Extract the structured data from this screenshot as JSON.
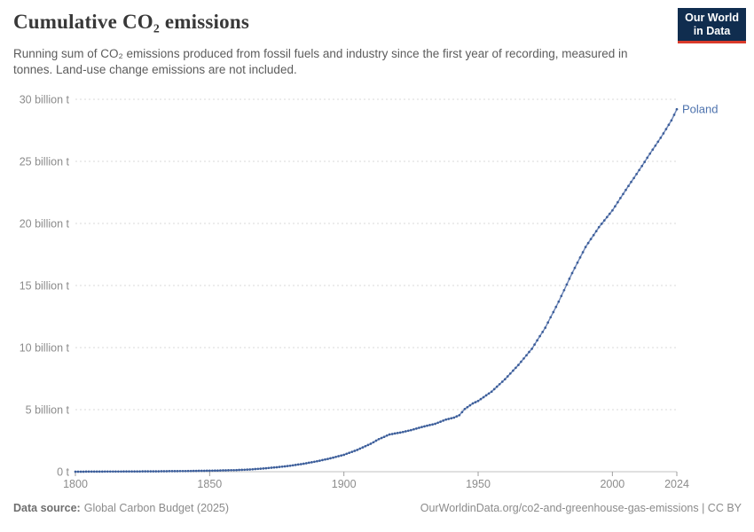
{
  "header": {
    "title": "Cumulative CO₂ emissions",
    "subtitle": "Running sum of CO₂ emissions produced from fossil fuels and industry since the first year of recording, measured in tonnes. Land-use change emissions are not included.",
    "logo": {
      "line1": "Our World",
      "line2": "in Data",
      "bg_color": "#102d4f",
      "accent_color": "#d93a2b"
    }
  },
  "chart_data": {
    "type": "line",
    "title": "Cumulative CO₂ emissions",
    "unit": "tonnes",
    "grid": true,
    "legend_position": "end-of-line label",
    "x": {
      "min": 1800,
      "max": 2024,
      "ticks": [
        1800,
        1850,
        1900,
        1950,
        2000,
        2024
      ]
    },
    "y": {
      "min": 0,
      "max": 30,
      "unit": "billion tonnes",
      "ticks": [
        {
          "value": 0,
          "label": "0 t"
        },
        {
          "value": 5,
          "label": "5 billion t"
        },
        {
          "value": 10,
          "label": "10 billion t"
        },
        {
          "value": 15,
          "label": "15 billion t"
        },
        {
          "value": 20,
          "label": "20 billion t"
        },
        {
          "value": 25,
          "label": "25 billion t"
        },
        {
          "value": 30,
          "label": "30 billion t"
        }
      ]
    },
    "series": [
      {
        "name": "Poland",
        "color": "#3c5e9a",
        "line_color": "#7088b8",
        "label_color": "#4d72ad",
        "anchors_year_billion_tonnes": [
          [
            1800,
            0.0
          ],
          [
            1810,
            0.01
          ],
          [
            1820,
            0.02
          ],
          [
            1830,
            0.03
          ],
          [
            1840,
            0.05
          ],
          [
            1850,
            0.08
          ],
          [
            1860,
            0.13
          ],
          [
            1865,
            0.18
          ],
          [
            1870,
            0.26
          ],
          [
            1875,
            0.36
          ],
          [
            1880,
            0.48
          ],
          [
            1885,
            0.64
          ],
          [
            1890,
            0.84
          ],
          [
            1895,
            1.08
          ],
          [
            1900,
            1.36
          ],
          [
            1905,
            1.76
          ],
          [
            1910,
            2.25
          ],
          [
            1913,
            2.62
          ],
          [
            1917,
            3.0
          ],
          [
            1921,
            3.15
          ],
          [
            1925,
            3.35
          ],
          [
            1929,
            3.6
          ],
          [
            1934,
            3.86
          ],
          [
            1938,
            4.2
          ],
          [
            1941,
            4.36
          ],
          [
            1943,
            4.55
          ],
          [
            1945,
            5.05
          ],
          [
            1948,
            5.5
          ],
          [
            1950,
            5.7
          ],
          [
            1955,
            6.45
          ],
          [
            1960,
            7.45
          ],
          [
            1965,
            8.6
          ],
          [
            1970,
            9.9
          ],
          [
            1975,
            11.6
          ],
          [
            1980,
            13.7
          ],
          [
            1985,
            16.0
          ],
          [
            1990,
            18.1
          ],
          [
            1995,
            19.7
          ],
          [
            2000,
            21.05
          ],
          [
            2005,
            22.7
          ],
          [
            2010,
            24.3
          ],
          [
            2015,
            25.95
          ],
          [
            2018,
            26.9
          ],
          [
            2020,
            27.6
          ],
          [
            2022,
            28.3
          ],
          [
            2024,
            29.2
          ]
        ]
      }
    ]
  },
  "footer": {
    "source_label": "Data source:",
    "source_value": "Global Carbon Budget (2025)",
    "link_text": "OurWorldinData.org/co2-and-greenhouse-gas-emissions | CC BY"
  }
}
